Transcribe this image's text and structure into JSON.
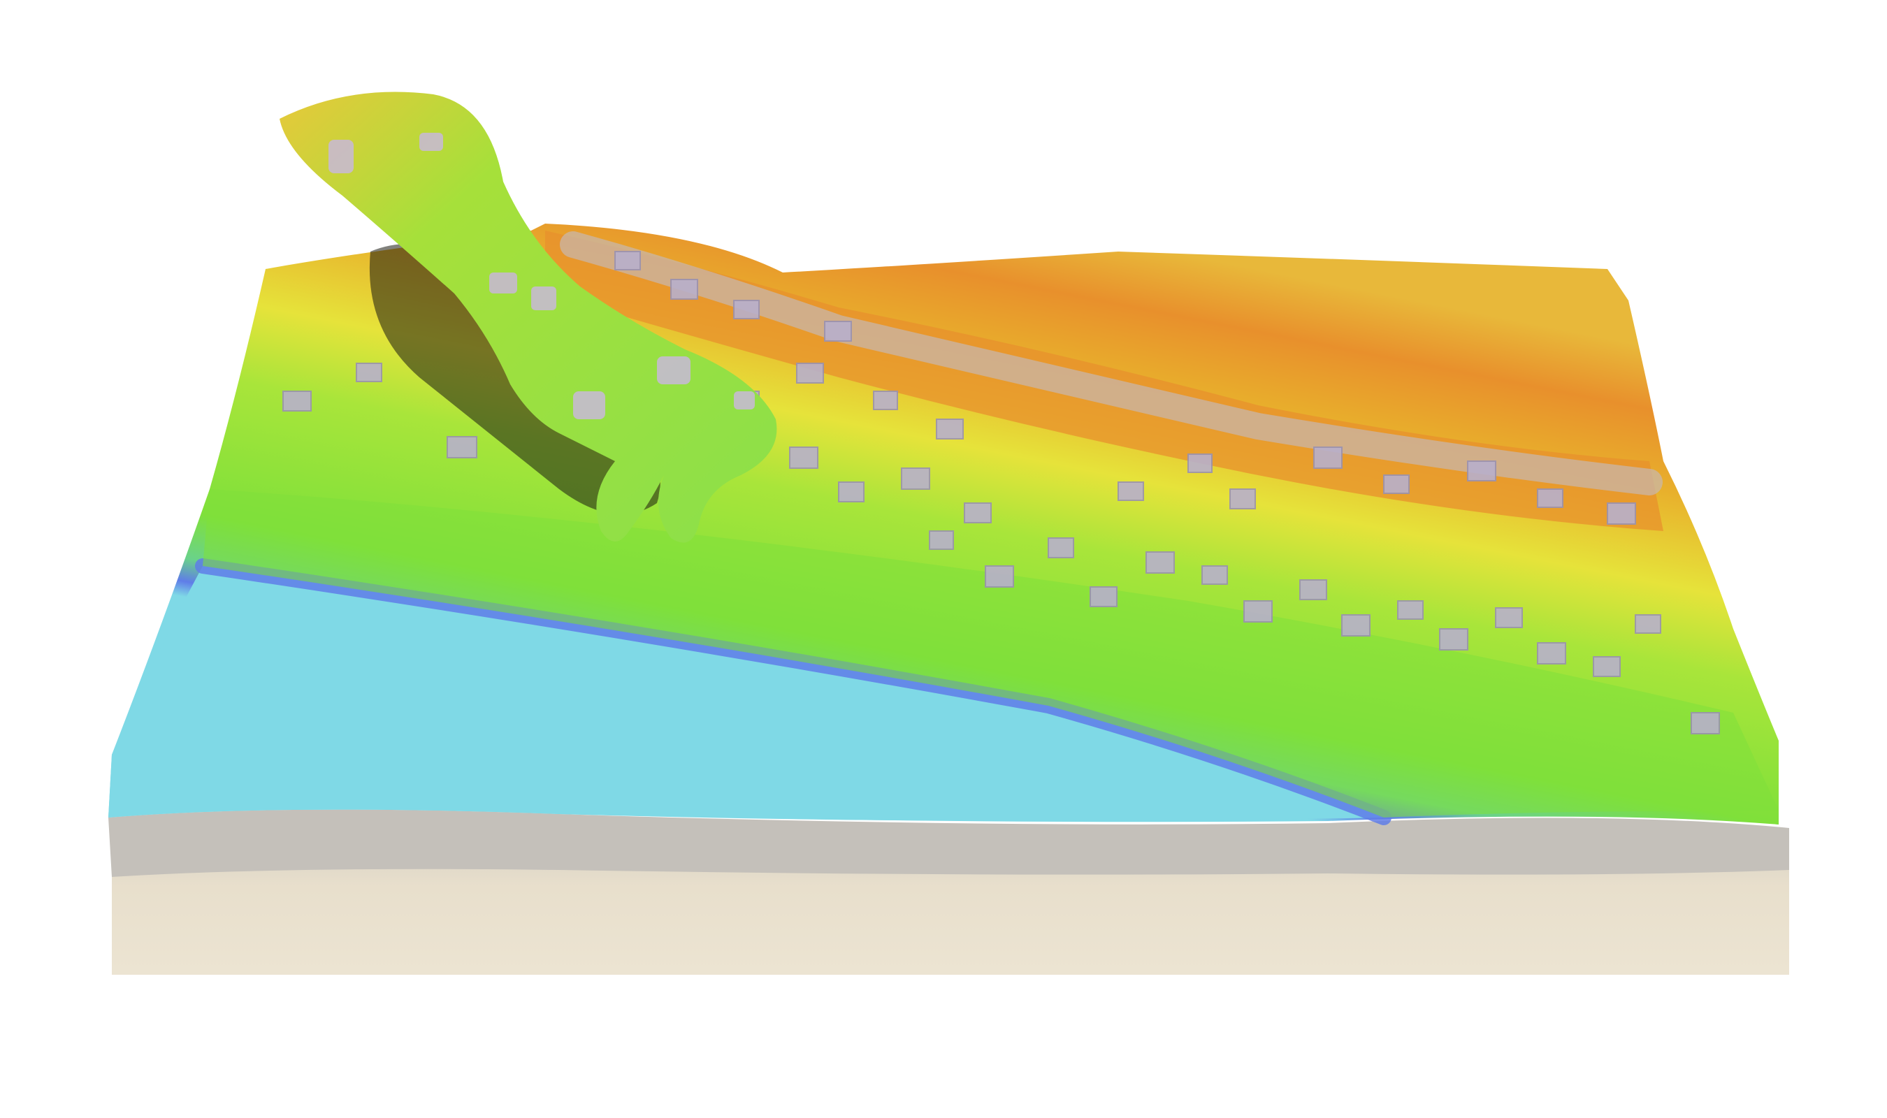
{
  "scene": {
    "subject": "tangible-sand-landscape-model",
    "colors": {
      "background": "#ffffff",
      "water": "#7fd9e6",
      "shoreline": "#5f7de8",
      "lowland": "#7fe03a",
      "midland": "#e6e33a",
      "highland": "#e8902c",
      "ridge": "#c8b8b0",
      "buildings": "#b8b0cc",
      "base": "#e4dccb",
      "base_edge": "#c4c0ba",
      "hand": "#8be04a"
    }
  }
}
